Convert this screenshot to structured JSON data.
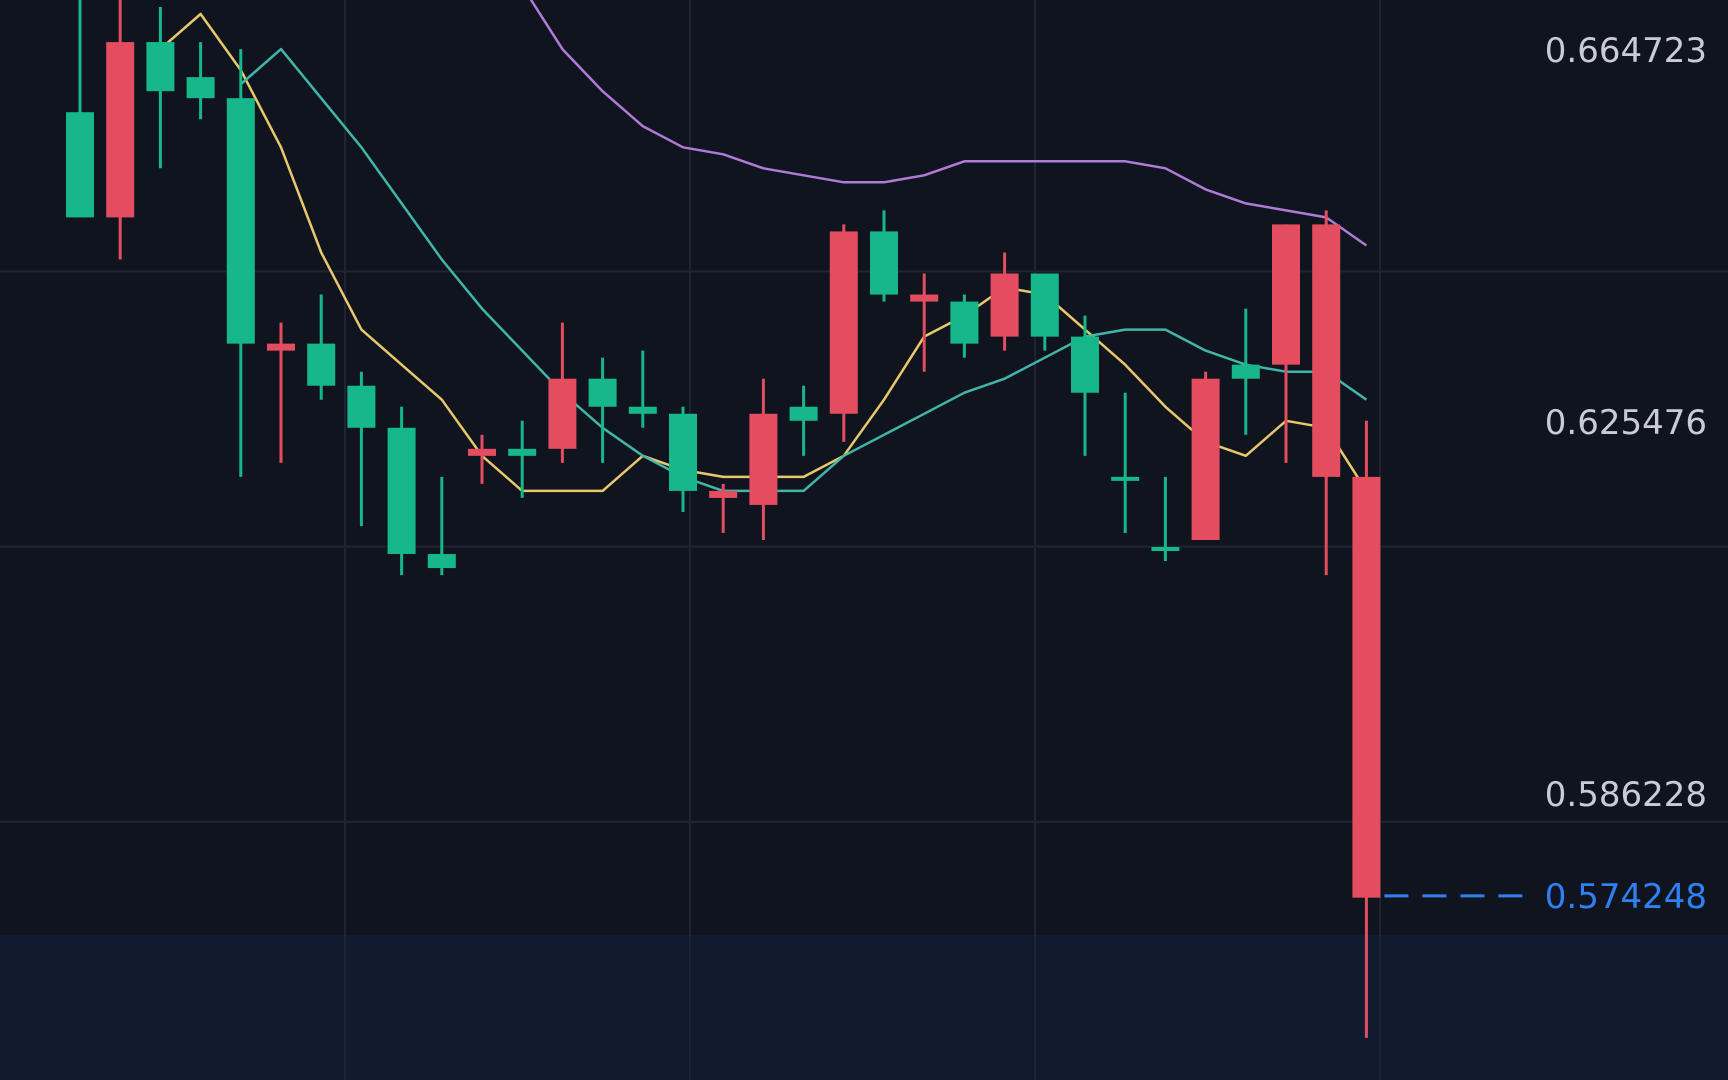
{
  "chart_data": {
    "type": "candlestick",
    "price_range": [
      0.548,
      0.702
    ],
    "grid": true,
    "colors": {
      "background": "#10141f",
      "grid": "#1e2433",
      "up": "#16b889",
      "down": "#e34d5f",
      "current_price": "#2f7ff5",
      "axis_label": "#c9ccd6",
      "ma_fast": "#e8c86a",
      "ma_mid": "#3fb6a8",
      "ma_slow": "#b07bd6"
    },
    "y_ticks": [
      "0.664723",
      "0.625476",
      "0.586228"
    ],
    "current_price": "0.574248",
    "candles": [
      {
        "o": 0.671,
        "h": 0.703,
        "l": 0.671,
        "c": 0.686
      },
      {
        "o": 0.696,
        "h": 0.704,
        "l": 0.665,
        "c": 0.671
      },
      {
        "o": 0.689,
        "h": 0.701,
        "l": 0.678,
        "c": 0.696
      },
      {
        "o": 0.688,
        "h": 0.696,
        "l": 0.685,
        "c": 0.691
      },
      {
        "o": 0.653,
        "h": 0.695,
        "l": 0.634,
        "c": 0.688
      },
      {
        "o": 0.653,
        "h": 0.656,
        "l": 0.636,
        "c": 0.652
      },
      {
        "o": 0.647,
        "h": 0.66,
        "l": 0.645,
        "c": 0.653
      },
      {
        "o": 0.641,
        "h": 0.649,
        "l": 0.627,
        "c": 0.647
      },
      {
        "o": 0.623,
        "h": 0.644,
        "l": 0.62,
        "c": 0.641
      },
      {
        "o": 0.621,
        "h": 0.634,
        "l": 0.62,
        "c": 0.623
      },
      {
        "o": 0.638,
        "h": 0.64,
        "l": 0.633,
        "c": 0.637
      },
      {
        "o": 0.637,
        "h": 0.642,
        "l": 0.631,
        "c": 0.638
      },
      {
        "o": 0.648,
        "h": 0.656,
        "l": 0.636,
        "c": 0.638
      },
      {
        "o": 0.644,
        "h": 0.651,
        "l": 0.636,
        "c": 0.648
      },
      {
        "o": 0.643,
        "h": 0.652,
        "l": 0.641,
        "c": 0.644
      },
      {
        "o": 0.632,
        "h": 0.644,
        "l": 0.629,
        "c": 0.643
      },
      {
        "o": 0.632,
        "h": 0.633,
        "l": 0.626,
        "c": 0.631
      },
      {
        "o": 0.643,
        "h": 0.648,
        "l": 0.625,
        "c": 0.63
      },
      {
        "o": 0.642,
        "h": 0.647,
        "l": 0.637,
        "c": 0.644
      },
      {
        "o": 0.669,
        "h": 0.67,
        "l": 0.639,
        "c": 0.643
      },
      {
        "o": 0.66,
        "h": 0.672,
        "l": 0.659,
        "c": 0.669
      },
      {
        "o": 0.66,
        "h": 0.663,
        "l": 0.649,
        "c": 0.659
      },
      {
        "o": 0.653,
        "h": 0.66,
        "l": 0.651,
        "c": 0.659
      },
      {
        "o": 0.663,
        "h": 0.666,
        "l": 0.652,
        "c": 0.654
      },
      {
        "o": 0.654,
        "h": 0.663,
        "l": 0.652,
        "c": 0.663
      },
      {
        "o": 0.646,
        "h": 0.657,
        "l": 0.637,
        "c": 0.654
      },
      {
        "o": 0.634,
        "h": 0.646,
        "l": 0.626,
        "c": 0.634
      },
      {
        "o": 0.624,
        "h": 0.634,
        "l": 0.622,
        "c": 0.624
      },
      {
        "o": 0.648,
        "h": 0.649,
        "l": 0.625,
        "c": 0.625
      },
      {
        "o": 0.648,
        "h": 0.658,
        "l": 0.64,
        "c": 0.65
      },
      {
        "o": 0.67,
        "h": 0.67,
        "l": 0.636,
        "c": 0.65
      },
      {
        "o": 0.67,
        "h": 0.672,
        "l": 0.62,
        "c": 0.634
      },
      {
        "o": 0.634,
        "h": 0.642,
        "l": 0.554,
        "c": 0.574
      }
    ],
    "moving_averages": [
      {
        "color_key": "ma_fast",
        "values": [
          0.695,
          0.7,
          0.692,
          0.681,
          0.666,
          0.655,
          0.65,
          0.645,
          0.637,
          0.632,
          0.632,
          0.632,
          0.637,
          0.635,
          0.634,
          0.634,
          0.634,
          0.637,
          0.645,
          0.654,
          0.657,
          0.661,
          0.66,
          0.655,
          0.65,
          0.644,
          0.639,
          0.637,
          0.642,
          0.641,
          0.632
        ]
      },
      {
        "color_key": "ma_mid",
        "values": [
          0.69,
          0.695,
          0.688,
          0.681,
          0.673,
          0.665,
          0.658,
          0.652,
          0.646,
          0.641,
          0.637,
          0.634,
          0.632,
          0.632,
          0.632,
          0.637,
          0.64,
          0.643,
          0.646,
          0.648,
          0.651,
          0.654,
          0.655,
          0.655,
          0.652,
          0.65,
          0.649,
          0.649,
          0.645
        ]
      },
      {
        "color_key": "ma_slow",
        "values": [
          0.704,
          0.695,
          0.689,
          0.684,
          0.681,
          0.68,
          0.678,
          0.677,
          0.676,
          0.676,
          0.677,
          0.679,
          0.679,
          0.679,
          0.679,
          0.679,
          0.678,
          0.675,
          0.673,
          0.672,
          0.671,
          0.667
        ]
      }
    ]
  }
}
